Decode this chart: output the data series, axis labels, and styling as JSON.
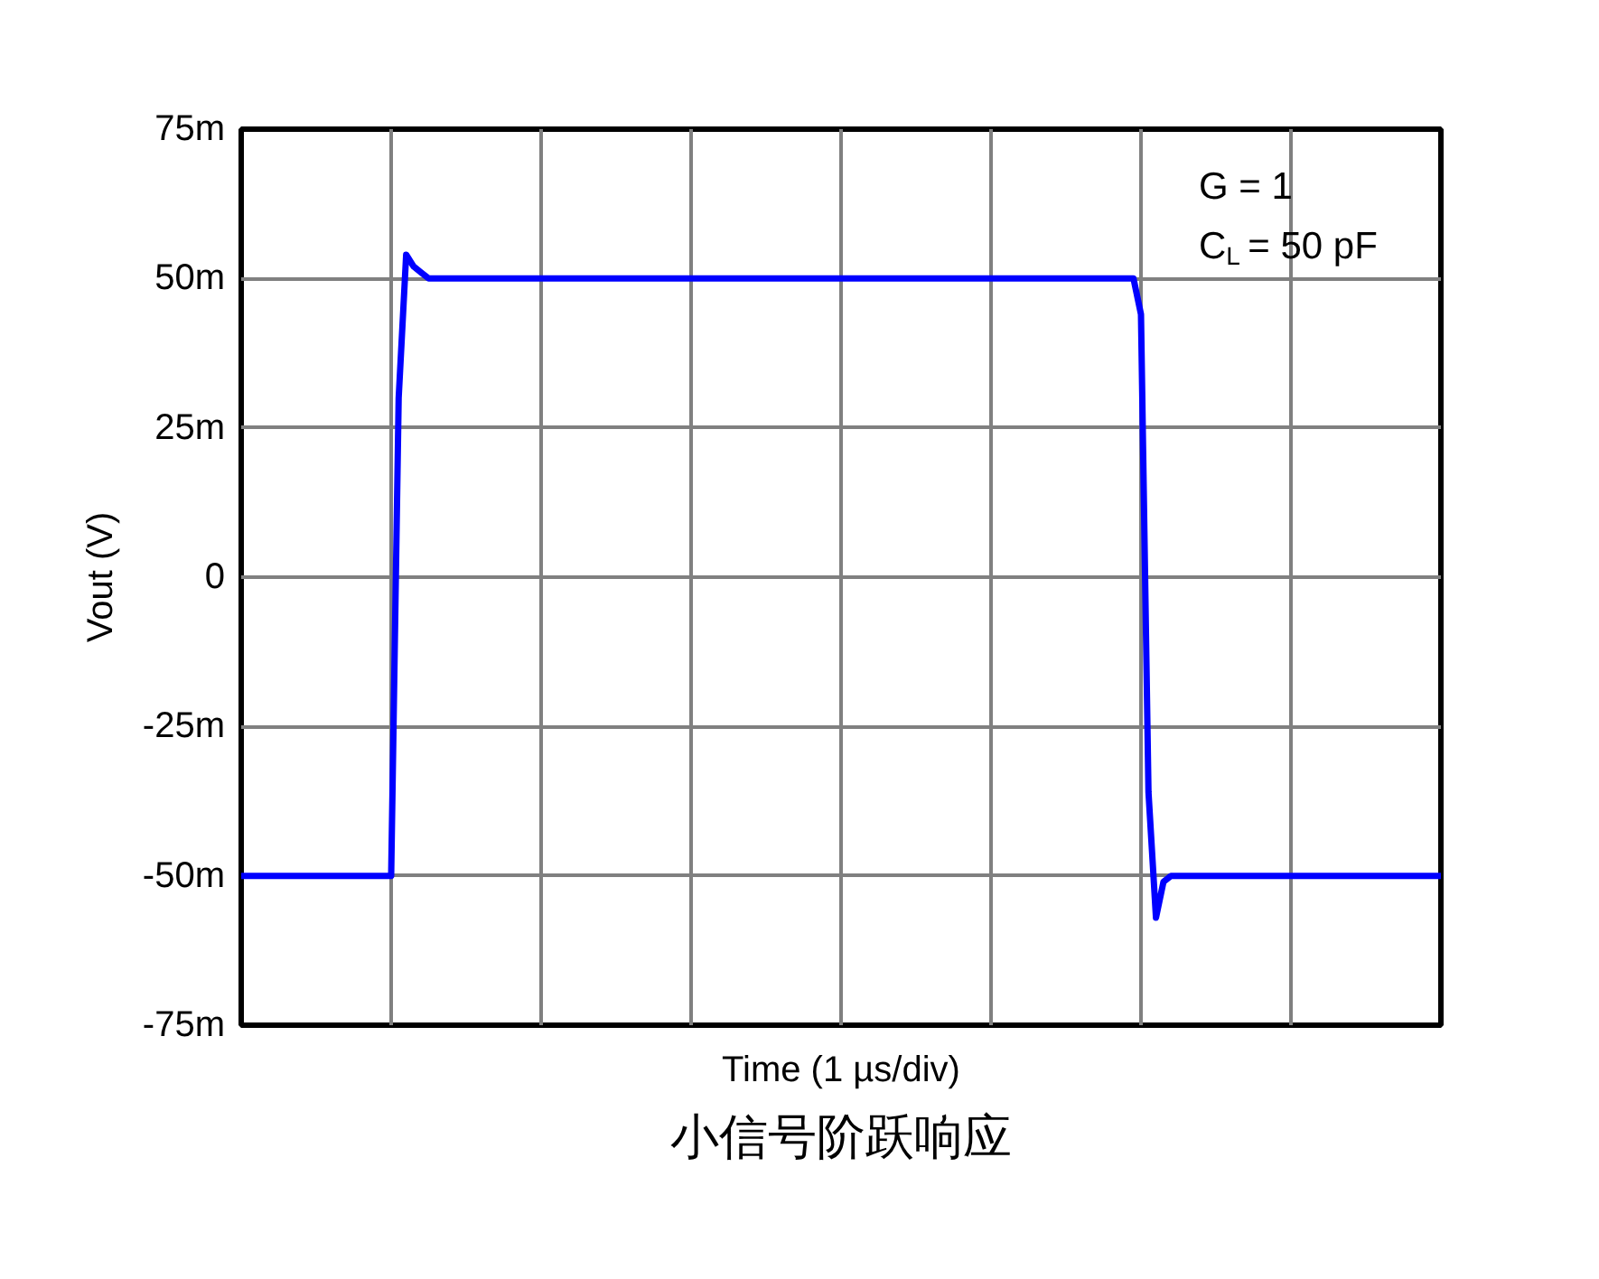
{
  "chart_data": {
    "type": "line",
    "title": "小信号阶跃响应",
    "xlabel": "Time (1 µs/div)",
    "ylabel": "Vout (V)",
    "annotations": [
      "G = 1",
      "C$_{L}$ = 50 pF"
    ],
    "categories": [
      null,
      null,
      null,
      null,
      null,
      null,
      null,
      null,
      null,
      null,
      null,
      null,
      null,
      null,
      null,
      null,
      null,
      null,
      null,
      null,
      null,
      null,
      null,
      null,
      null,
      null,
      null,
      null,
      null,
      null,
      null,
      null,
      null,
      null,
      null,
      null,
      null,
      null,
      null,
      null,
      null,
      null,
      null,
      null,
      null,
      null,
      null,
      null,
      null,
      null,
      null,
      null,
      null,
      null,
      null,
      null,
      null,
      null,
      null,
      null,
      null,
      null,
      null,
      null,
      null,
      null,
      null,
      null,
      null,
      null,
      null,
      null,
      null,
      null,
      null,
      null,
      null,
      null,
      null,
      null,
      null,
      null,
      null,
      null,
      null,
      null,
      null,
      null,
      null,
      null,
      null,
      null,
      null,
      null,
      null,
      null,
      null,
      null,
      null,
      null,
      null,
      null,
      null,
      null,
      null,
      null,
      null,
      null,
      null,
      null,
      null,
      null,
      null,
      null,
      null,
      null,
      null,
      null,
      null,
      null,
      null,
      null,
      null,
      null,
      null,
      null,
      null,
      null,
      null,
      null,
      null,
      null,
      null,
      null,
      null,
      null,
      null,
      null,
      null,
      null,
      null,
      null,
      null,
      null,
      null,
      null,
      null,
      null,
      null,
      null,
      null,
      null,
      null,
      null,
      null,
      null,
      null,
      null,
      null,
      null,
      null
    ],
    "series": [
      {
        "color": "#0000ff",
        "values": [
          -50,
          -50,
          -50,
          -50,
          -50,
          -50,
          -50,
          -50,
          -50,
          -50,
          -50,
          -50,
          -50,
          -50,
          -50,
          -50,
          -50,
          -50,
          -50,
          -50,
          -50,
          30,
          54,
          52,
          51,
          50,
          50,
          50,
          50,
          50,
          50,
          50,
          50,
          50,
          50,
          50,
          50,
          50,
          50,
          50,
          50,
          50,
          50,
          50,
          50,
          50,
          50,
          50,
          50,
          50,
          50,
          50,
          50,
          50,
          50,
          50,
          50,
          50,
          50,
          50,
          50,
          50,
          50,
          50,
          50,
          50,
          50,
          50,
          50,
          50,
          50,
          50,
          50,
          50,
          50,
          50,
          50,
          50,
          50,
          50,
          50,
          50,
          50,
          50,
          50,
          50,
          50,
          50,
          50,
          50,
          50,
          50,
          50,
          50,
          50,
          50,
          50,
          50,
          50,
          50,
          50,
          50,
          50,
          50,
          50,
          50,
          50,
          50,
          50,
          50,
          50,
          50,
          50,
          50,
          50,
          50,
          50,
          50,
          50,
          50,
          44,
          -36,
          -57,
          -51,
          -50,
          -50,
          -50,
          -50,
          -50,
          -50,
          -50,
          -50,
          -50,
          -50,
          -50,
          -50,
          -50,
          -50,
          -50,
          -50,
          -50,
          -50,
          -50,
          -50,
          -50,
          -50,
          -50,
          -50,
          -50,
          -50,
          -50,
          -50,
          -50,
          -50,
          -50,
          -50,
          -50,
          -50,
          -50,
          -50,
          -50
        ]
      }
    ],
    "ylim": [
      -75,
      75
    ],
    "yticks": [
      {
        "value": -75,
        "label": "-75m"
      },
      {
        "value": -50,
        "label": "-50m"
      },
      {
        "value": -25,
        "label": "-25m"
      },
      0,
      {
        "value": 25,
        "label": "25m"
      },
      {
        "value": 50,
        "label": "50m"
      },
      {
        "value": 75,
        "label": "75m"
      }
    ],
    "grid": true
  }
}
